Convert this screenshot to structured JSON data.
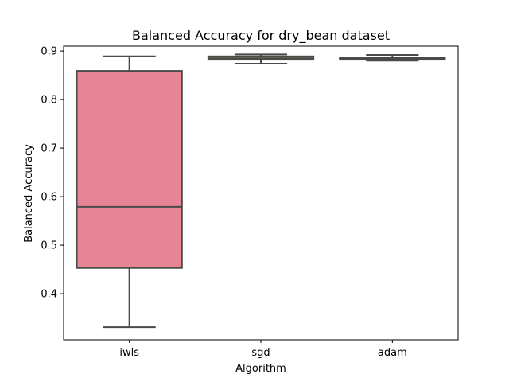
{
  "chart_data": {
    "type": "box",
    "title": "Balanced Accuracy for dry_bean dataset",
    "xlabel": "Algorithm",
    "ylabel": "Balanced Accuracy",
    "ylim": [
      0.305,
      0.91
    ],
    "yticks": [
      0.4,
      0.5,
      0.6,
      0.7,
      0.8,
      0.9
    ],
    "ytick_labels": [
      "0.4",
      "0.5",
      "0.6",
      "0.7",
      "0.8",
      "0.9"
    ],
    "grid": false,
    "categories": [
      "iwls",
      "sgd",
      "adam"
    ],
    "boxes": [
      {
        "category": "iwls",
        "min": 0.331,
        "q1": 0.453,
        "median": 0.579,
        "q3": 0.859,
        "max": 0.889,
        "color": "#e78496"
      },
      {
        "category": "sgd",
        "min": 0.874,
        "q1": 0.882,
        "median": 0.885,
        "q3": 0.889,
        "max": 0.893,
        "color": "#8aa862"
      },
      {
        "category": "adam",
        "min": 0.88,
        "q1": 0.882,
        "median": 0.884,
        "q3": 0.887,
        "max": 0.892,
        "color": "#5eaaa8"
      }
    ]
  }
}
